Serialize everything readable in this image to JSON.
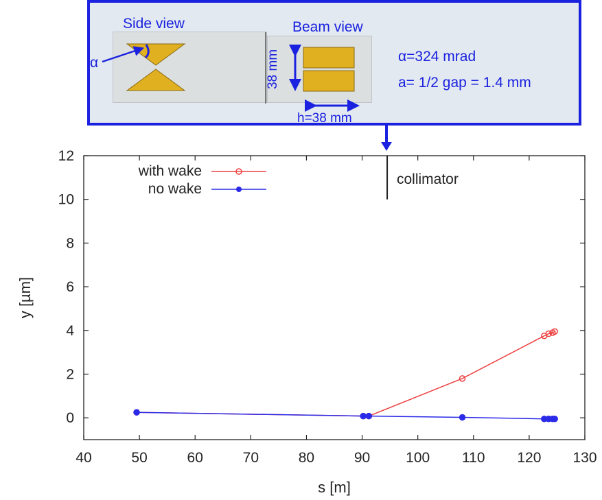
{
  "inset": {
    "side_view_label": "Side view",
    "beam_view_label": "Beam view",
    "alpha_symbol": "α",
    "height_label": "38 mm",
    "width_label": "h=38 mm",
    "param_alpha": "α=324 mrad",
    "param_gap": "a= 1/2 gap = 1.4 mm",
    "colors": {
      "frame": "#1a22e0",
      "jaw": "#e0b020",
      "panel": "#e3e9f0"
    }
  },
  "chart_data": {
    "type": "line",
    "xlabel": "s [m]",
    "ylabel": "y [µm]",
    "xlim": [
      40,
      130
    ],
    "ylim": [
      -1,
      12
    ],
    "xticks": [
      40,
      50,
      60,
      70,
      80,
      90,
      100,
      110,
      120,
      130
    ],
    "yticks": [
      0,
      2,
      4,
      6,
      8,
      10,
      12
    ],
    "grid": false,
    "legend_position": "top-left",
    "series": [
      {
        "name": "with wake",
        "color": "#ee4040",
        "marker": "open-circle",
        "x": [
          49.5,
          90.2,
          91.2,
          108,
          122.7,
          123.5,
          124.2,
          124.6
        ],
        "y": [
          0.25,
          0.08,
          0.08,
          1.8,
          3.75,
          3.85,
          3.9,
          3.95
        ]
      },
      {
        "name": "no wake",
        "color": "#2a2ae8",
        "marker": "filled-circle",
        "x": [
          49.5,
          90.2,
          91.2,
          108,
          122.7,
          123.5,
          124.2,
          124.6
        ],
        "y": [
          0.25,
          0.08,
          0.08,
          0.02,
          -0.05,
          -0.05,
          -0.05,
          -0.05
        ]
      }
    ],
    "annotation": {
      "label": "collimator",
      "x": 94.5,
      "y_range": [
        10,
        12
      ]
    }
  }
}
